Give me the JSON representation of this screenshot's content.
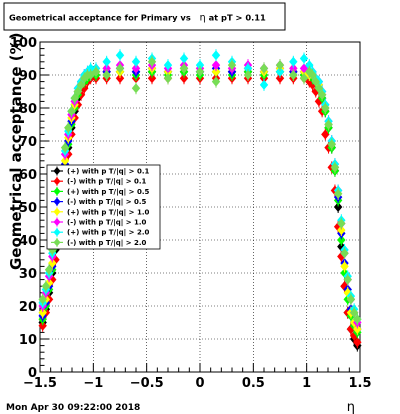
{
  "chart_data": {
    "type": "scatter",
    "title": "Geometrical acceptance for Primary vs η at pT > 0.11",
    "title_parts": {
      "before": "Geometrical acceptance for Primary vs ",
      "symbol": "η",
      "after": " at pT > 0.11"
    },
    "xlabel": "η",
    "ylabel": "Geometrical acceptance (%)",
    "xlim": [
      -1.5,
      1.5
    ],
    "ylim": [
      0,
      100
    ],
    "x_ticks": [
      "−1.5",
      "−1",
      "−0.5",
      "0",
      "0.5",
      "1",
      "1.5"
    ],
    "x_tick_values": [
      -1.5,
      -1,
      -0.5,
      0,
      0.5,
      1,
      1.5
    ],
    "y_ticks": [
      "0",
      "10",
      "20",
      "30",
      "40",
      "50",
      "60",
      "70",
      "80",
      "90",
      "100"
    ],
    "y_tick_values": [
      0,
      10,
      20,
      30,
      40,
      50,
      60,
      70,
      80,
      90,
      100
    ],
    "grid": true,
    "legend_position": "middle-left",
    "timestamp": "Mon Apr 30 09:22:00 2018",
    "series": [
      {
        "name": "(+) with p T/|q| > 0.1",
        "color": "#000000",
        "marker": "circle",
        "x": [
          -1.475,
          -1.445,
          -1.415,
          -1.385,
          -1.355,
          -1.325,
          -1.295,
          -1.265,
          -1.235,
          -1.205,
          -1.175,
          -1.145,
          -1.115,
          -1.085,
          -1.055,
          -1.025,
          -0.975,
          -0.875,
          -0.75,
          -0.6,
          -0.45,
          -0.3,
          -0.15,
          0,
          0.15,
          0.3,
          0.45,
          0.6,
          0.75,
          0.875,
          0.975,
          1.025,
          1.055,
          1.085,
          1.115,
          1.145,
          1.175,
          1.205,
          1.235,
          1.265,
          1.295,
          1.325,
          1.355,
          1.385,
          1.415,
          1.445,
          1.475
        ],
        "y": [
          15,
          19,
          24,
          30,
          37,
          45,
          53,
          61,
          68,
          74,
          79,
          83,
          86,
          88,
          89,
          90,
          90,
          91,
          91,
          91,
          91,
          91,
          91,
          91,
          91,
          91,
          91,
          91,
          91,
          91,
          90,
          90,
          89,
          88,
          86,
          83,
          79,
          74,
          68,
          61,
          50,
          38,
          26,
          18,
          13,
          10,
          8
        ]
      },
      {
        "name": "(-) with p T/|q| > 0.1",
        "color": "#ff0000",
        "marker": "circle",
        "x": [
          -1.475,
          -1.445,
          -1.415,
          -1.385,
          -1.355,
          -1.325,
          -1.295,
          -1.265,
          -1.235,
          -1.205,
          -1.175,
          -1.145,
          -1.115,
          -1.085,
          -1.055,
          -1.025,
          -0.975,
          -0.875,
          -0.75,
          -0.6,
          -0.45,
          -0.3,
          -0.15,
          0,
          0.15,
          0.3,
          0.45,
          0.6,
          0.75,
          0.875,
          0.975,
          1.025,
          1.055,
          1.085,
          1.115,
          1.145,
          1.175,
          1.205,
          1.235,
          1.265,
          1.295,
          1.325,
          1.355,
          1.385,
          1.415,
          1.445,
          1.475
        ],
        "y": [
          14,
          18,
          22,
          28,
          34,
          42,
          50,
          58,
          66,
          72,
          77,
          81,
          84,
          86,
          88,
          89,
          89,
          89,
          89,
          89,
          89,
          89,
          89,
          89,
          89,
          89,
          89,
          89,
          89,
          89,
          89,
          88,
          87,
          85,
          82,
          79,
          72,
          68,
          62,
          55,
          44,
          35,
          26,
          18,
          13,
          11,
          9
        ]
      },
      {
        "name": "(+) with p T/|q| > 0.5",
        "color": "#00ff00",
        "marker": "circle",
        "x": [
          -1.475,
          -1.445,
          -1.415,
          -1.385,
          -1.355,
          -1.325,
          -1.295,
          -1.265,
          -1.235,
          -1.205,
          -1.175,
          -1.145,
          -1.115,
          -1.085,
          -1.055,
          -1.025,
          -0.975,
          -0.875,
          -0.75,
          -0.6,
          -0.45,
          -0.3,
          -0.15,
          0,
          0.15,
          0.3,
          0.45,
          0.6,
          0.75,
          0.875,
          0.975,
          1.025,
          1.055,
          1.085,
          1.115,
          1.145,
          1.175,
          1.205,
          1.235,
          1.265,
          1.295,
          1.325,
          1.355,
          1.385,
          1.415,
          1.445,
          1.475
        ],
        "y": [
          16,
          20,
          25,
          31,
          38,
          46,
          54,
          62,
          69,
          75,
          80,
          84,
          87,
          88,
          89,
          90,
          90,
          90,
          91,
          90,
          91,
          90,
          91,
          90,
          91,
          90,
          91,
          90,
          91,
          90,
          90,
          90,
          89,
          88,
          86,
          83,
          79,
          74,
          68,
          61,
          52,
          40,
          30,
          22,
          17,
          14,
          12
        ]
      },
      {
        "name": "(-) with p T/|q| > 0.5",
        "color": "#0000ff",
        "marker": "circle",
        "x": [
          -1.475,
          -1.445,
          -1.415,
          -1.385,
          -1.355,
          -1.325,
          -1.295,
          -1.265,
          -1.235,
          -1.205,
          -1.175,
          -1.145,
          -1.115,
          -1.085,
          -1.055,
          -1.025,
          -0.975,
          -0.875,
          -0.75,
          -0.6,
          -0.45,
          -0.3,
          -0.15,
          0,
          0.15,
          0.3,
          0.45,
          0.6,
          0.75,
          0.875,
          0.975,
          1.025,
          1.055,
          1.085,
          1.115,
          1.145,
          1.175,
          1.205,
          1.235,
          1.265,
          1.295,
          1.325,
          1.355,
          1.385,
          1.415,
          1.445,
          1.475
        ],
        "y": [
          17,
          21,
          26,
          32,
          39,
          47,
          55,
          63,
          70,
          76,
          81,
          85,
          87,
          89,
          90,
          90,
          91,
          91,
          92,
          91,
          92,
          91,
          92,
          91,
          92,
          91,
          92,
          91,
          92,
          91,
          91,
          90,
          90,
          88,
          87,
          84,
          80,
          75,
          69,
          62,
          53,
          42,
          33,
          25,
          19,
          15,
          13
        ]
      },
      {
        "name": "(+) with p T/|q| > 1.0",
        "color": "#ffff00",
        "marker": "circle",
        "x": [
          -1.475,
          -1.445,
          -1.415,
          -1.385,
          -1.355,
          -1.325,
          -1.295,
          -1.265,
          -1.235,
          -1.205,
          -1.175,
          -1.145,
          -1.115,
          -1.085,
          -1.055,
          -1.025,
          -0.975,
          -0.875,
          -0.75,
          -0.6,
          -0.45,
          -0.3,
          -0.15,
          0,
          0.15,
          0.3,
          0.45,
          0.6,
          0.75,
          0.875,
          0.975,
          1.025,
          1.055,
          1.085,
          1.115,
          1.145,
          1.175,
          1.205,
          1.235,
          1.265,
          1.295,
          1.325,
          1.355,
          1.385,
          1.415,
          1.445,
          1.475
        ],
        "y": [
          18,
          22,
          27,
          33,
          40,
          48,
          56,
          64,
          71,
          77,
          81,
          85,
          87,
          89,
          90,
          91,
          91,
          92,
          91,
          92,
          92,
          91,
          92,
          92,
          91,
          92,
          92,
          91,
          92,
          92,
          91,
          90,
          90,
          89,
          87,
          84,
          80,
          75,
          69,
          62,
          54,
          43,
          32,
          24,
          18,
          15,
          13
        ]
      },
      {
        "name": "(-) with p T/|q| > 1.0",
        "color": "#ff00ff",
        "marker": "circle",
        "x": [
          -1.475,
          -1.445,
          -1.415,
          -1.385,
          -1.355,
          -1.325,
          -1.295,
          -1.265,
          -1.235,
          -1.205,
          -1.175,
          -1.145,
          -1.115,
          -1.085,
          -1.055,
          -1.025,
          -0.975,
          -0.875,
          -0.75,
          -0.6,
          -0.45,
          -0.3,
          -0.15,
          0,
          0.15,
          0.3,
          0.45,
          0.6,
          0.75,
          0.875,
          0.975,
          1.025,
          1.055,
          1.085,
          1.115,
          1.145,
          1.175,
          1.205,
          1.235,
          1.265,
          1.295,
          1.325,
          1.355,
          1.385,
          1.415,
          1.445,
          1.475
        ],
        "y": [
          20,
          24,
          29,
          35,
          42,
          50,
          58,
          66,
          72,
          78,
          82,
          86,
          88,
          90,
          91,
          91,
          92,
          92,
          93,
          92,
          93,
          92,
          93,
          92,
          93,
          92,
          93,
          92,
          93,
          92,
          92,
          91,
          91,
          89,
          88,
          85,
          81,
          76,
          70,
          63,
          55,
          45,
          36,
          28,
          22,
          18,
          15
        ]
      },
      {
        "name": "(+) with p T/|q| > 2.0",
        "color": "#00ffff",
        "marker": "circle",
        "x": [
          -1.475,
          -1.445,
          -1.415,
          -1.385,
          -1.355,
          -1.325,
          -1.295,
          -1.265,
          -1.235,
          -1.205,
          -1.175,
          -1.145,
          -1.115,
          -1.085,
          -1.055,
          -1.025,
          -0.975,
          -0.875,
          -0.75,
          -0.6,
          -0.45,
          -0.3,
          -0.15,
          0,
          0.15,
          0.3,
          0.45,
          0.6,
          0.75,
          0.875,
          0.975,
          1.025,
          1.055,
          1.085,
          1.115,
          1.145,
          1.175,
          1.205,
          1.235,
          1.265,
          1.295,
          1.325,
          1.355,
          1.385,
          1.415,
          1.445,
          1.475
        ],
        "y": [
          21,
          25,
          30,
          36,
          43,
          51,
          59,
          67,
          73,
          79,
          83,
          86,
          88,
          90,
          91,
          92,
          92,
          94,
          96,
          94,
          95,
          93,
          95,
          93,
          96,
          94,
          92,
          87,
          91,
          94,
          95,
          93,
          91,
          89,
          88,
          85,
          81,
          76,
          70,
          63,
          55,
          46,
          37,
          29,
          23,
          19,
          16
        ]
      },
      {
        "name": "(-) with p T/|q| > 2.0",
        "color": "#77dd55",
        "marker": "circle",
        "x": [
          -1.475,
          -1.445,
          -1.415,
          -1.385,
          -1.355,
          -1.325,
          -1.295,
          -1.265,
          -1.235,
          -1.205,
          -1.175,
          -1.145,
          -1.115,
          -1.085,
          -1.055,
          -1.025,
          -0.975,
          -0.875,
          -0.75,
          -0.6,
          -0.45,
          -0.3,
          -0.15,
          0,
          0.15,
          0.3,
          0.45,
          0.6,
          0.75,
          0.875,
          0.975,
          1.025,
          1.055,
          1.085,
          1.115,
          1.145,
          1.175,
          1.205,
          1.235,
          1.265,
          1.295,
          1.325,
          1.355,
          1.385,
          1.415,
          1.445,
          1.475
        ],
        "y": [
          22,
          26,
          31,
          37,
          44,
          52,
          60,
          68,
          74,
          79,
          83,
          85,
          87,
          89,
          90,
          90,
          91,
          90,
          92,
          86,
          94,
          89,
          92,
          91,
          88,
          93,
          90,
          92,
          93,
          90,
          89,
          91,
          90,
          88,
          86,
          84,
          80,
          75,
          69,
          62,
          54,
          45,
          36,
          28,
          22,
          18,
          16
        ]
      }
    ]
  }
}
